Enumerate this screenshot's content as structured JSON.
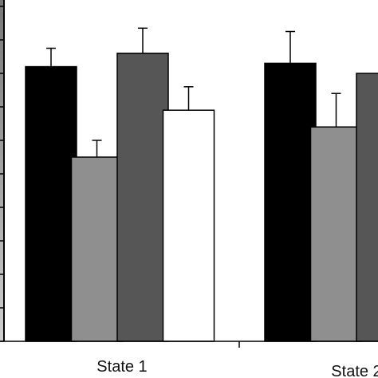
{
  "chart_data": {
    "type": "bar",
    "categories": [
      "State 1",
      "State 2"
    ],
    "ylim": [
      0,
      100
    ],
    "grid": false,
    "series": [
      {
        "color": "#000000",
        "values": [
          82,
          83
        ],
        "errors": [
          5.5,
          9.5
        ]
      },
      {
        "color": "#8f8f8f",
        "values": [
          55,
          64
        ],
        "errors": [
          5,
          10
        ]
      },
      {
        "color": "#565656",
        "values": [
          86,
          80
        ],
        "errors": [
          7.5,
          0
        ]
      },
      {
        "color": "#ffffff",
        "values": [
          69,
          null
        ],
        "errors": [
          7,
          0
        ]
      }
    ]
  }
}
